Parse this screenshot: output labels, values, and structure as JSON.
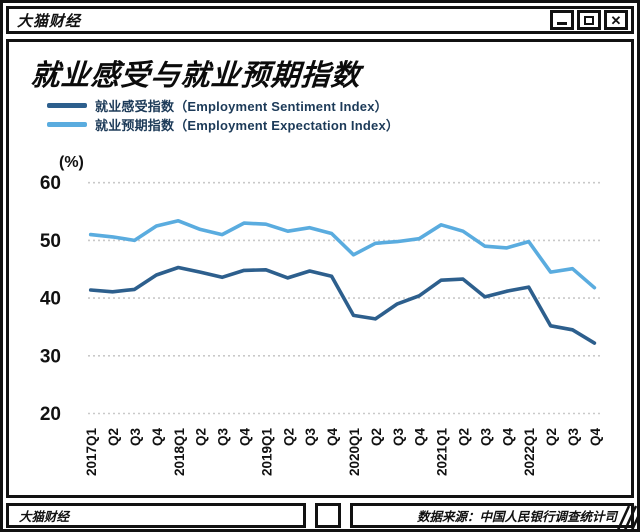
{
  "window": {
    "titlebar_brand": "大猫财经",
    "buttons": {
      "minimize_icon": "underscore-bar",
      "maximize_icon": "square-outline",
      "close_glyph": "✕"
    }
  },
  "header": {
    "title": "就业感受与就业预期指数"
  },
  "legend": [
    {
      "label": "就业感受指数（Employment Sentiment Index）",
      "color": "#2d5f8d"
    },
    {
      "label": "就业预期指数（Employment Expectation Index）",
      "color": "#5aacdf"
    }
  ],
  "footer": {
    "brand": "大猫财经",
    "source": "数据来源：中国人民银行调查统计司"
  },
  "chart_data": {
    "type": "line",
    "title": "就业感受与就业预期指数",
    "unit_label": "(%)",
    "grid": "dotted-horizontal",
    "grid_color": "#c9c9c9",
    "ylim": [
      20,
      60
    ],
    "yticks": [
      60,
      50,
      40,
      30,
      20
    ],
    "categories": [
      "2017Q1",
      "Q2",
      "Q3",
      "Q4",
      "2018Q1",
      "Q2",
      "Q3",
      "Q4",
      "2019Q1",
      "Q2",
      "Q3",
      "Q4",
      "2020Q1",
      "Q2",
      "Q3",
      "Q4",
      "2021Q1",
      "Q2",
      "Q3",
      "Q4",
      "2022Q1",
      "Q2",
      "Q3",
      "Q4"
    ],
    "series": [
      {
        "name": "就业感受指数（Employment Sentiment Index）",
        "color": "#2d5f8d",
        "values": [
          41.4,
          41.1,
          41.5,
          44.0,
          45.3,
          44.5,
          43.6,
          44.8,
          44.9,
          43.5,
          44.7,
          43.8,
          37.0,
          36.4,
          39.0,
          40.4,
          43.1,
          43.3,
          40.2,
          41.2,
          41.9,
          35.2,
          34.5,
          32.2
        ]
      },
      {
        "name": "就业预期指数（Employment Expectation Index）",
        "color": "#5aacdf",
        "values": [
          51.0,
          50.6,
          50.0,
          52.5,
          53.4,
          51.9,
          51.0,
          53.0,
          52.8,
          51.6,
          52.2,
          51.2,
          47.5,
          49.5,
          49.8,
          50.3,
          52.7,
          51.6,
          49.0,
          48.7,
          49.8,
          44.5,
          45.1,
          41.8
        ]
      }
    ]
  }
}
